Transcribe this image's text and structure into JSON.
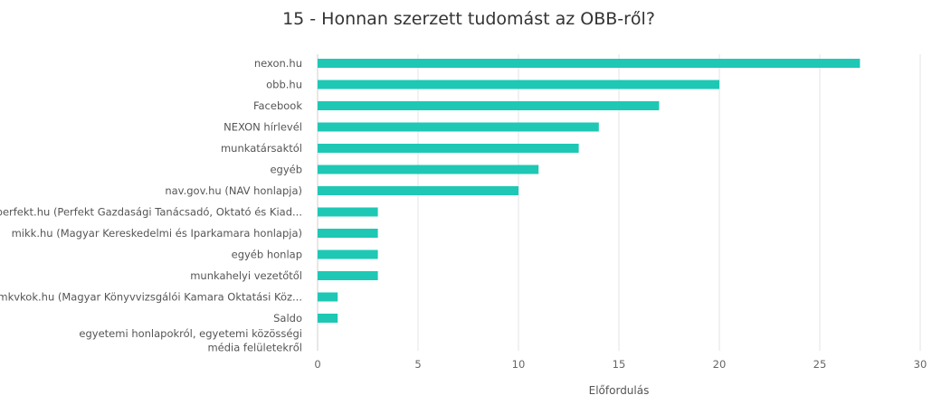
{
  "chart_data": {
    "type": "bar",
    "orientation": "horizontal",
    "title": "15 - Honnan szerzett tudomást az OBB-ről?",
    "xlabel": "Előfordulás",
    "ylabel": "",
    "xlim": [
      0,
      30
    ],
    "xticks": [
      0,
      5,
      10,
      15,
      20,
      25,
      30
    ],
    "grid": true,
    "bar_color": "#1ec8b4",
    "categories": [
      "nexon.hu",
      "obb.hu",
      "Facebook",
      "NEXON hírlevél",
      "munkatársaktól",
      "egyéb",
      "nav.gov.hu (NAV honlapja)",
      "perfekt.hu (Perfekt Gazdasági Tanácsadó, Oktató és Kiad...",
      "mikk.hu (Magyar Kereskedelmi és Iparkamara honlapja)",
      "egyéb honlap",
      "munkahelyi vezetőtől",
      "mkvkok.hu (Magyar Könyvvizsgálói Kamara Oktatási Köz...",
      "Saldo",
      "egyetemi honlapokról, egyetemi közösségi média felületekről"
    ],
    "values": [
      27,
      20,
      17,
      14,
      13,
      11,
      10,
      3,
      3,
      3,
      3,
      1,
      1,
      0
    ]
  }
}
